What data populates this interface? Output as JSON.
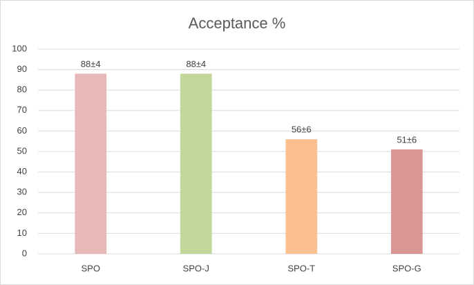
{
  "chart_data": {
    "type": "bar",
    "title": "Acceptance %",
    "categories": [
      "SPO",
      "SPO-J",
      "SPO-T",
      "SPO-G"
    ],
    "values": [
      88,
      88,
      56,
      51
    ],
    "value_labels": [
      "88±4",
      "88±4",
      "56±6",
      "51±6"
    ],
    "colors": [
      "#e6b8b7",
      "#c4d79b",
      "#fac090",
      "#da9694"
    ],
    "ylim": [
      0,
      100
    ],
    "yticks": [
      0,
      10,
      20,
      30,
      40,
      50,
      60,
      70,
      80,
      90,
      100
    ],
    "grid": true
  }
}
